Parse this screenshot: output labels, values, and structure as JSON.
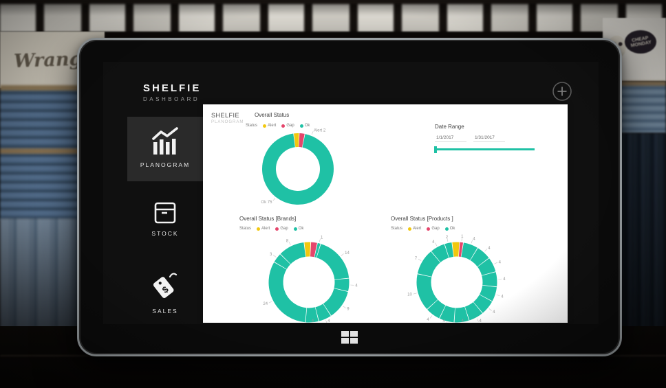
{
  "app": {
    "title": "SHELFIE",
    "subtitle": "DASHBOARD"
  },
  "background": {
    "left_sign_text": "Wrangler",
    "right_badge_text": "CHEAP MONDAY"
  },
  "nav": {
    "items": [
      {
        "label": "PLANOGRAM",
        "active": true
      },
      {
        "label": "STOCK",
        "active": false
      },
      {
        "label": "SALES",
        "active": false
      }
    ]
  },
  "panel": {
    "brand_title": "SHELFIE",
    "brand_subtitle": "PLANOGRAM"
  },
  "legend": {
    "status_label": "Status",
    "items": [
      {
        "label": "Alert",
        "color": "yellow"
      },
      {
        "label": "Gap",
        "color": "red"
      },
      {
        "label": "Ok",
        "color": "teal"
      }
    ]
  },
  "colors": {
    "teal": "#1fc1a5",
    "yellow": "#f2c80f",
    "red": "#e5456b"
  },
  "icons": {
    "planogram": "bar-chart-trend",
    "stock": "box",
    "sales": "price-tag-dollar",
    "sales_glyph": "$",
    "add": "plus-circle",
    "windows": "windows-logo"
  },
  "date_range": {
    "title": "Date Range",
    "start": "1/1/2017",
    "end": "1/31/2017"
  },
  "chart_data": [
    {
      "type": "donut",
      "title": "Overall Status",
      "legend_position": "top",
      "start_deg": -97,
      "segments": [
        {
          "series": "Alert",
          "value": 2,
          "color": "yellow",
          "label": "Alert 2",
          "label_deg": -68
        },
        {
          "series": "Gap",
          "value": 2,
          "color": "red"
        },
        {
          "series": "Ok",
          "value": 75,
          "color": "teal",
          "label": "Ok 75",
          "label_deg": 128
        }
      ]
    },
    {
      "type": "donut",
      "title": "Overall Status [Brands]",
      "legend_position": "top",
      "start_deg": -97,
      "segments": [
        {
          "series": "Alert",
          "value": 2,
          "color": "yellow"
        },
        {
          "series": "Gap",
          "value": 2,
          "color": "red"
        },
        {
          "series": "Ok",
          "value": 1,
          "color": "teal",
          "label": "1"
        },
        {
          "series": "Ok",
          "value": 14,
          "color": "teal",
          "label": "14"
        },
        {
          "series": "Ok",
          "value": 4,
          "color": "teal",
          "label": "4"
        },
        {
          "series": "Ok",
          "value": 9,
          "color": "teal",
          "label": "9"
        },
        {
          "series": "Ok",
          "value": 4,
          "color": "teal",
          "label": "4"
        },
        {
          "series": "Ok",
          "value": 4,
          "color": "teal",
          "label": "4"
        },
        {
          "series": "Ok",
          "value": 24,
          "color": "teal",
          "label": "24"
        },
        {
          "series": "Ok",
          "value": 3,
          "color": "teal",
          "label": "3"
        },
        {
          "series": "Ok",
          "value": 8,
          "color": "teal",
          "label": "8"
        }
      ]
    },
    {
      "type": "donut",
      "title": "Overall Status [Products ]",
      "legend_position": "top",
      "start_deg": -97,
      "segments": [
        {
          "series": "Alert",
          "value": 2,
          "color": "yellow"
        },
        {
          "series": "Gap",
          "value": 1,
          "color": "red",
          "label": "1"
        },
        {
          "series": "Ok",
          "value": 4,
          "color": "teal",
          "label": "4"
        },
        {
          "series": "Ok",
          "value": 4,
          "color": "teal",
          "label": "4"
        },
        {
          "series": "Ok",
          "value": 4,
          "color": "teal",
          "label": "4"
        },
        {
          "series": "Ok",
          "value": 4,
          "color": "teal",
          "label": "4"
        },
        {
          "series": "Ok",
          "value": 4,
          "color": "teal",
          "label": "4"
        },
        {
          "series": "Ok",
          "value": 4,
          "color": "teal",
          "label": "4"
        },
        {
          "series": "Ok",
          "value": 4,
          "color": "teal",
          "label": "4"
        },
        {
          "series": "Ok",
          "value": 4,
          "color": "teal",
          "label": "4"
        },
        {
          "series": "Ok",
          "value": 4,
          "color": "teal",
          "label": "4"
        },
        {
          "series": "Ok",
          "value": 4,
          "color": "teal",
          "label": "4"
        },
        {
          "series": "Ok",
          "value": 10,
          "color": "teal",
          "label": "10"
        },
        {
          "series": "Ok",
          "value": 7,
          "color": "teal",
          "label": "7"
        },
        {
          "series": "Ok",
          "value": 4,
          "color": "teal",
          "label": "4"
        },
        {
          "series": "Ok",
          "value": 2,
          "color": "teal",
          "label": "2"
        }
      ]
    }
  ]
}
